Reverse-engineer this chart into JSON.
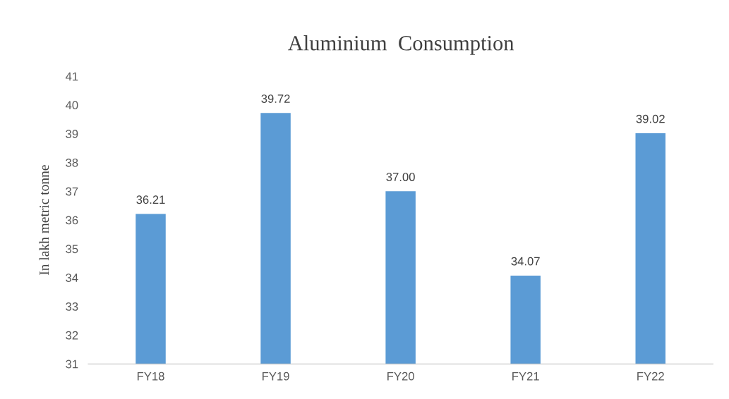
{
  "chart_data": {
    "type": "bar",
    "title": "Aluminium  Consumption",
    "ylabel": "In lakh metric tonne",
    "categories": [
      "FY18",
      "FY19",
      "FY20",
      "FY21",
      "FY22"
    ],
    "values": [
      36.21,
      39.72,
      37.0,
      34.07,
      39.02
    ],
    "value_labels": [
      "36.21",
      "39.72",
      "37.00",
      "34.07",
      "39.02"
    ],
    "color": "#5b9bd5",
    "ylim": [
      31,
      41
    ],
    "yticks": [
      31,
      32,
      33,
      34,
      35,
      36,
      37,
      38,
      39,
      40,
      41
    ],
    "grid": false,
    "legend": false
  }
}
